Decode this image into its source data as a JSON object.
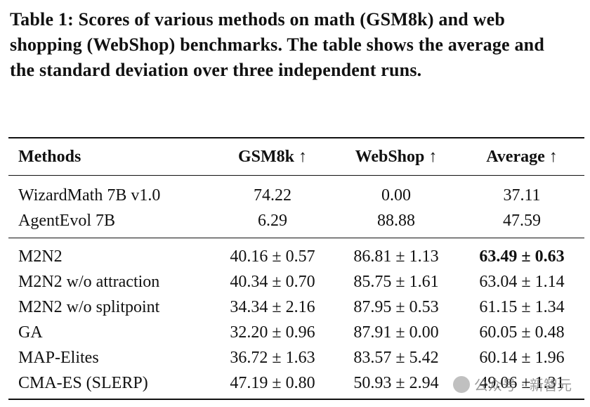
{
  "caption": "Table 1: Scores of various methods on math (GSM8k) and web shopping (WebShop) benchmarks. The table shows the average and the standard deviation over three independent runs.",
  "table": {
    "headers": [
      "Methods",
      "GSM8k ↑",
      "WebShop ↑",
      "Average ↑"
    ],
    "group1": [
      [
        "WizardMath 7B v1.0",
        "74.22",
        "0.00",
        "37.11"
      ],
      [
        "AgentEvol 7B",
        "6.29",
        "88.88",
        "47.59"
      ]
    ],
    "group2": [
      [
        "M2N2",
        "40.16 ± 0.57",
        "86.81 ± 1.13",
        "63.49 ± 0.63"
      ],
      [
        "M2N2 w/o attraction",
        "40.34 ± 0.70",
        "85.75 ± 1.61",
        "63.04 ± 1.14"
      ],
      [
        "M2N2 w/o splitpoint",
        "34.34 ± 2.16",
        "87.95 ± 0.53",
        "61.15 ± 1.34"
      ],
      [
        "GA",
        "32.20 ± 0.96",
        "87.91 ± 0.00",
        "60.05 ± 0.48"
      ],
      [
        "MAP-Elites",
        "36.72 ± 1.63",
        "83.57 ± 5.42",
        "60.14 ± 1.96"
      ],
      [
        "CMA-ES (SLERP)",
        "47.19 ± 0.80",
        "50.93 ± 2.94",
        "49.06 ± 1.31"
      ]
    ]
  },
  "watermark": "公众号 · 新智元"
}
